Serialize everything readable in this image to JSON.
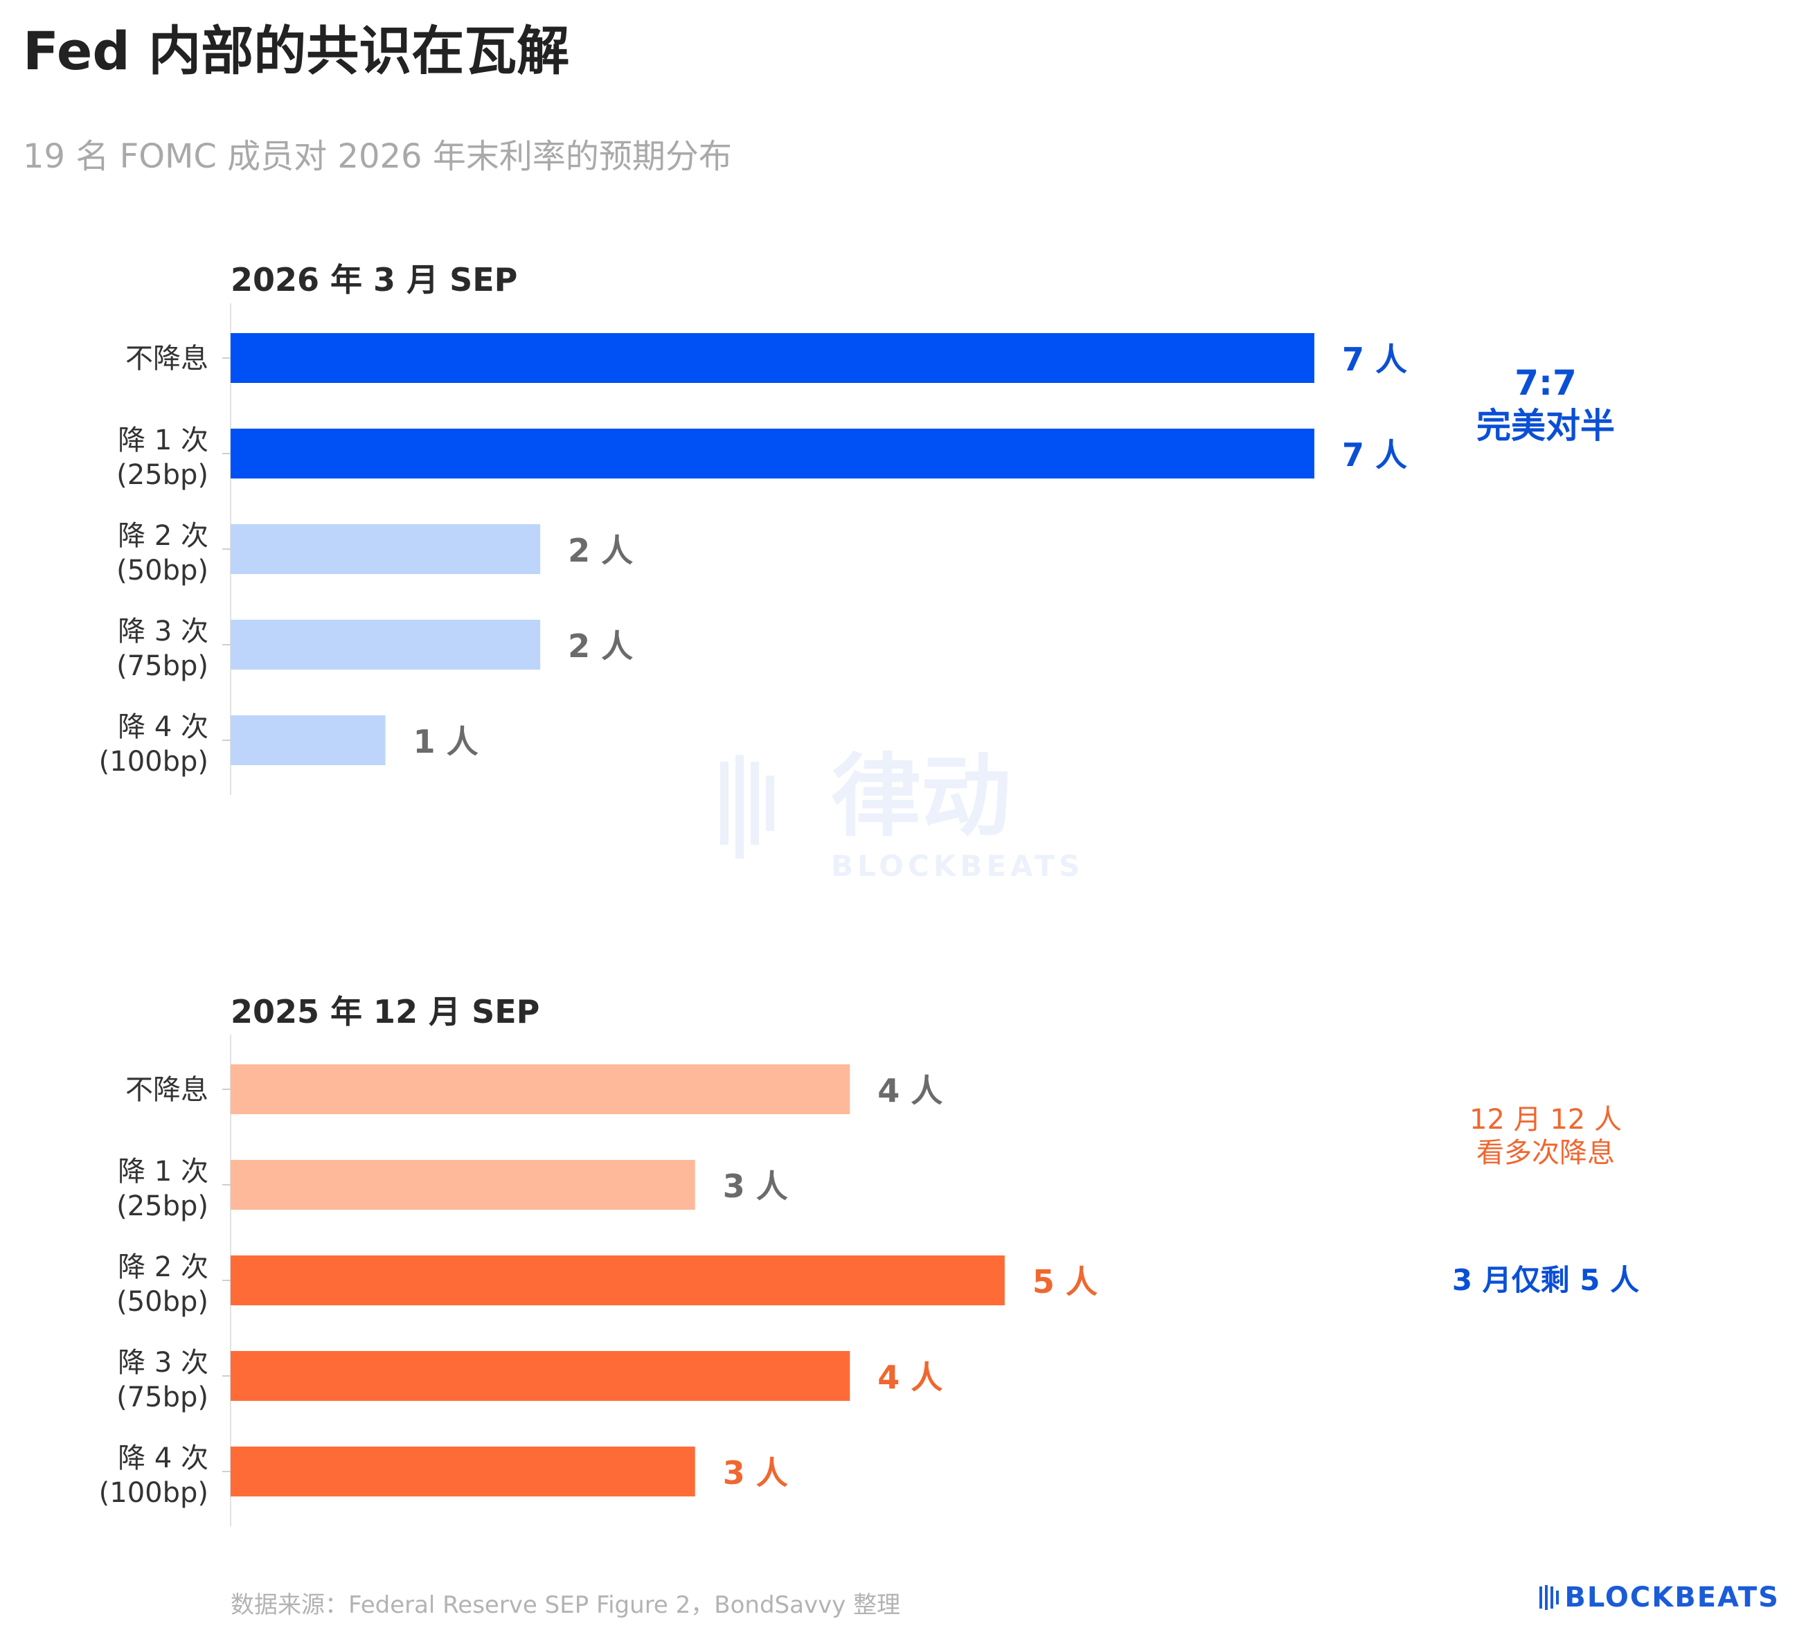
{
  "title": "Fed 内部的共识在瓦解",
  "subtitle": "19 名 FOMC 成员对 2026 年末利率的预期分布",
  "chart_data": [
    {
      "type": "bar",
      "orientation": "horizontal",
      "title": "2026 年 3 月 SEP",
      "categories": [
        "不降息",
        "降 1 次\n(25bp)",
        "降 2 次\n(50bp)",
        "降 3 次\n(75bp)",
        "降 4 次\n(100bp)"
      ],
      "values": [
        7,
        7,
        2,
        2,
        1
      ],
      "value_labels": [
        "7 人",
        "7 人",
        "2 人",
        "2 人",
        "1 人"
      ],
      "colors": [
        "#0051f5",
        "#0051f5",
        "#bdd5fb",
        "#bdd5fb",
        "#bdd5fb"
      ],
      "label_colors": [
        "#0a4fd6",
        "#0a4fd6",
        "#6b6b6b",
        "#6b6b6b",
        "#6b6b6b"
      ],
      "xlim": [
        0,
        7
      ],
      "annotation": [
        "7:7",
        "完美对半"
      ]
    },
    {
      "type": "bar",
      "orientation": "horizontal",
      "title": "2025 年 12 月 SEP",
      "categories": [
        "不降息",
        "降 1 次\n(25bp)",
        "降 2 次\n(50bp)",
        "降 3 次\n(75bp)",
        "降 4 次\n(100bp)"
      ],
      "values": [
        4,
        3,
        5,
        4,
        3
      ],
      "value_labels": [
        "4 人",
        "3 人",
        "5 人",
        "4 人",
        "3 人"
      ],
      "colors": [
        "#fdb99a",
        "#fdb99a",
        "#ff6b36",
        "#ff6b36",
        "#ff6b36"
      ],
      "label_colors": [
        "#6b6b6b",
        "#6b6b6b",
        "#f0672f",
        "#f0672f",
        "#f0672f"
      ],
      "xlim": [
        0,
        7
      ],
      "annotation_top": [
        "12 月 12 人",
        "看多次降息"
      ],
      "annotation_bottom": [
        "3 月仅剩 5 人"
      ]
    }
  ],
  "source": "数据来源：Federal Reserve SEP Figure 2，BondSavvy 整理",
  "logo": "BLOCKBEATS",
  "watermark": {
    "cn": "律动",
    "en": "BLOCKBEATS"
  },
  "colors": {
    "annotation_blue": "#0a4fd6",
    "annotation_orange": "#f0672f"
  }
}
